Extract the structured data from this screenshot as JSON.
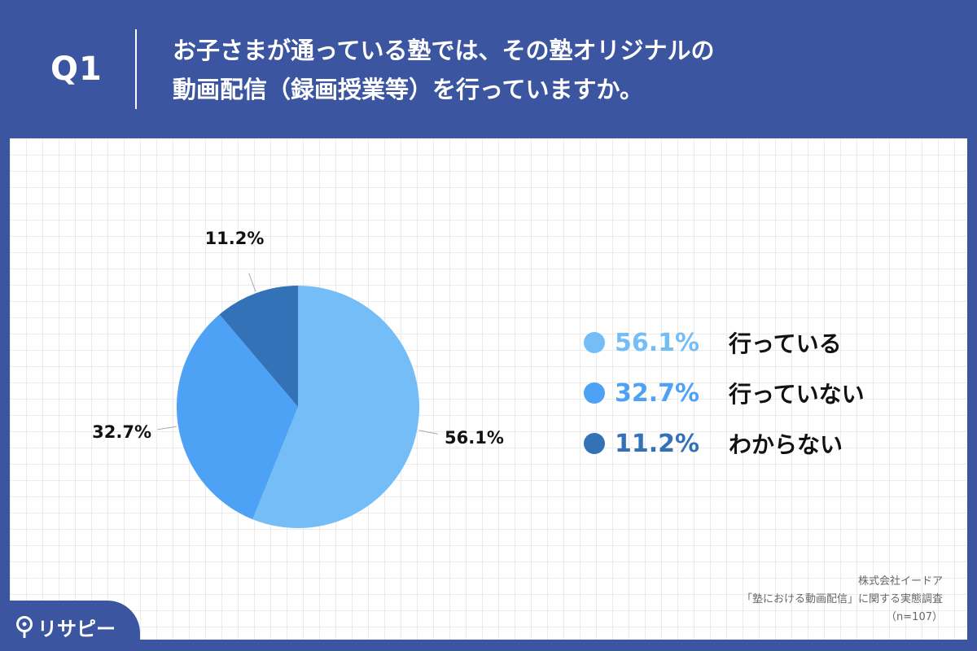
{
  "header": {
    "q_label": "Q1",
    "question_line1": "お子さまが通っている塾では、その塾オリジナルの",
    "question_line2": "動画配信（録画授業等）を行っていますか。"
  },
  "chart_data": {
    "type": "pie",
    "title": "お子さまが通っている塾では、その塾オリジナルの動画配信（録画授業等）を行っていますか。",
    "categories": [
      "行っている",
      "行っていない",
      "わからない"
    ],
    "values": [
      56.1,
      32.7,
      11.2
    ],
    "value_labels": [
      "56.1%",
      "32.7%",
      "11.2%"
    ],
    "colors": [
      "#74bdf7",
      "#4da2f5",
      "#3472b8"
    ],
    "start_angle_deg": 0,
    "direction": "clockwise",
    "legend_position": "right"
  },
  "legend": [
    {
      "pct": "56.1%",
      "label": "行っている",
      "color": "#74bdf7"
    },
    {
      "pct": "32.7%",
      "label": "行っていない",
      "color": "#4da2f5"
    },
    {
      "pct": "11.2%",
      "label": "わからない",
      "color": "#3472b8"
    }
  ],
  "source": {
    "line1": "株式会社イードア",
    "line2": "「塾における動画配信」に関する実態調査",
    "line3": "（n=107）"
  },
  "logo": {
    "text": "リサピー"
  },
  "colors": {
    "background": "#3c55a0",
    "panel": "#ffffff"
  }
}
